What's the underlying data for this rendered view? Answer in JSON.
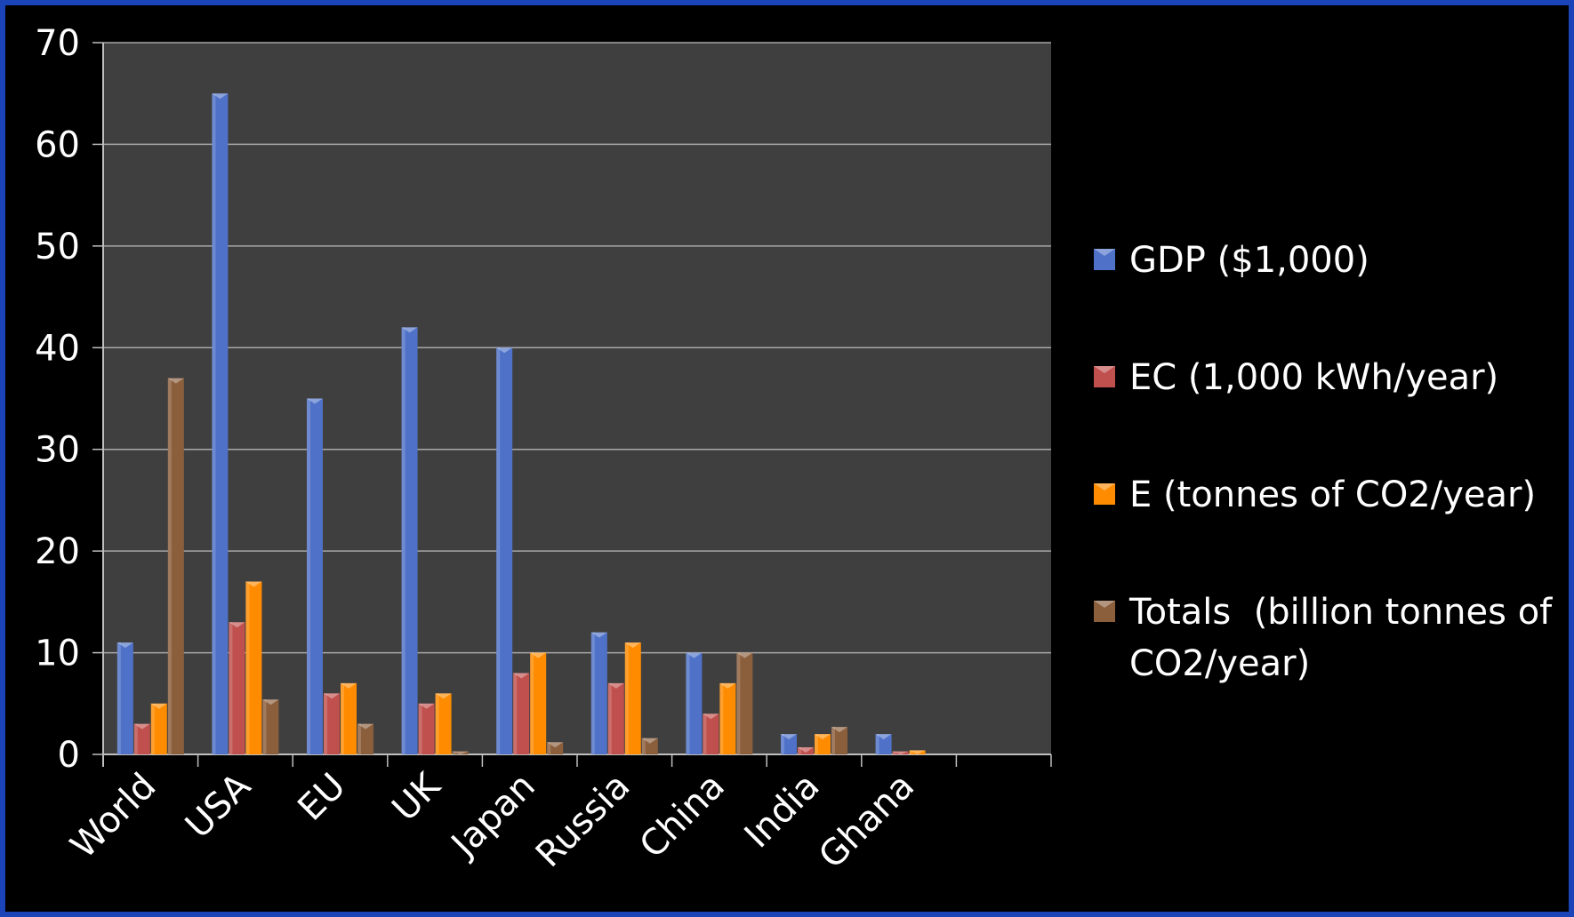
{
  "chart_data": {
    "type": "bar",
    "categories": [
      "World",
      "USA",
      "EU",
      "UK",
      "Japan",
      "Russia",
      "China",
      "India",
      "Ghana",
      ""
    ],
    "series": [
      {
        "name": "GDP ($1,000)",
        "color": "#4f72c8",
        "values": [
          11,
          65,
          35,
          42,
          40,
          12,
          10,
          2,
          2,
          null
        ]
      },
      {
        "name": "EC (1,000 kWh/year)",
        "color": "#c0504d",
        "values": [
          3,
          13,
          6,
          5,
          8,
          7,
          4,
          0.7,
          0.3,
          null
        ]
      },
      {
        "name": "E (tonnes of CO2/year)",
        "color": "#ff8c00",
        "values": [
          5,
          17,
          7,
          6,
          10,
          11,
          7,
          2,
          0.4,
          null
        ]
      },
      {
        "name": "Totals  (billion tonnes of CO2/year)",
        "color": "#8b5e3c",
        "values": [
          37,
          5.4,
          3,
          0.3,
          1.2,
          1.6,
          10,
          2.7,
          null,
          null
        ]
      }
    ],
    "ylim": [
      0,
      70
    ],
    "yticks": [
      0,
      10,
      20,
      30,
      40,
      50,
      60,
      70
    ],
    "grid": true,
    "legend_position": "right",
    "plot_background": "#3f3f3f",
    "title": "",
    "xlabel": "",
    "ylabel": ""
  }
}
